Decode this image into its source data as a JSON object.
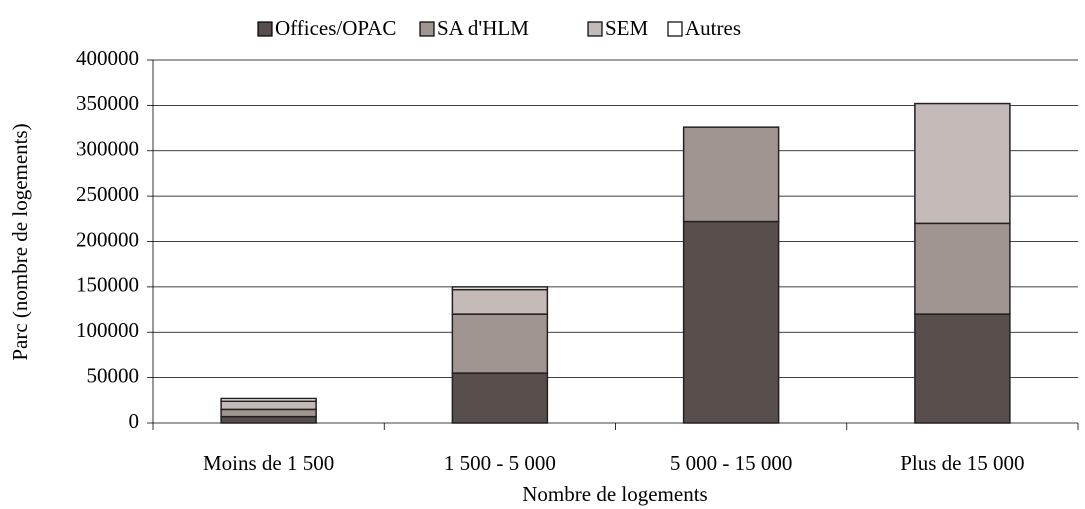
{
  "chart_data": {
    "type": "stacked_bar",
    "x_label": "Nombre de logements",
    "y_label": "Parc (nombre de logements)",
    "categories": [
      "Moins de 1 500",
      "1 500 - 5 000",
      "5 000 - 15 000",
      "Plus de 15 000"
    ],
    "series": [
      {
        "name": "Offices/OPAC",
        "color": "#584e4b",
        "values": [
          7000,
          55000,
          222000,
          120000
        ]
      },
      {
        "name": "SA d'HLM",
        "color": "#a09590",
        "values": [
          8000,
          65000,
          104000,
          100000
        ]
      },
      {
        "name": "SEM",
        "color": "#c4bab7",
        "values": [
          9000,
          27000,
          0,
          132000
        ]
      },
      {
        "name": "Autres",
        "color": "#ffffff",
        "values": [
          3000,
          3000,
          0,
          0
        ]
      }
    ],
    "ylim": [
      0,
      400000
    ],
    "yticks": [
      0,
      50000,
      100000,
      150000,
      200000,
      250000,
      300000,
      350000,
      400000
    ],
    "grid": true,
    "legend": "top"
  }
}
